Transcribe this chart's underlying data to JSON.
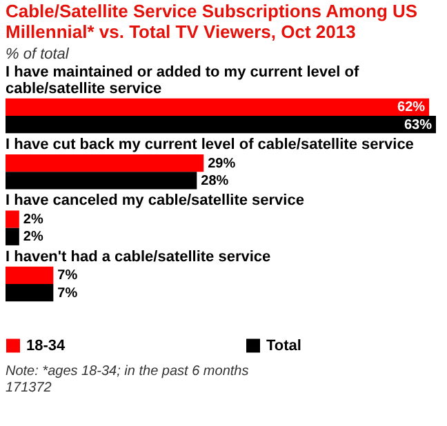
{
  "chart_data": {
    "type": "bar",
    "orientation": "horizontal",
    "title": "Cable/Satellite Service Subscriptions Among US Millennial* vs. Total TV Viewers, Oct 2013",
    "subtitle": "% of total",
    "categories": [
      "I have maintained or added to my current level of cable/satellite service",
      "I have cut back my current level of cable/satellite service",
      "I have canceled my cable/satellite service",
      "I haven't had a cable/satellite service"
    ],
    "series": [
      {
        "name": "18-34",
        "color": "#ff0000",
        "values": [
          62,
          29,
          2,
          7
        ],
        "value_labels": [
          "62%",
          "29%",
          "2%",
          "7%"
        ]
      },
      {
        "name": "Total",
        "color": "#000000",
        "values": [
          63,
          28,
          2,
          7
        ],
        "value_labels": [
          "63%",
          "28%",
          "2%",
          "7%"
        ]
      }
    ],
    "grid": false,
    "legend": "bottom",
    "annotations": [
      "Note: *ages 18-34; in the past 6 months",
      "171372"
    ]
  }
}
